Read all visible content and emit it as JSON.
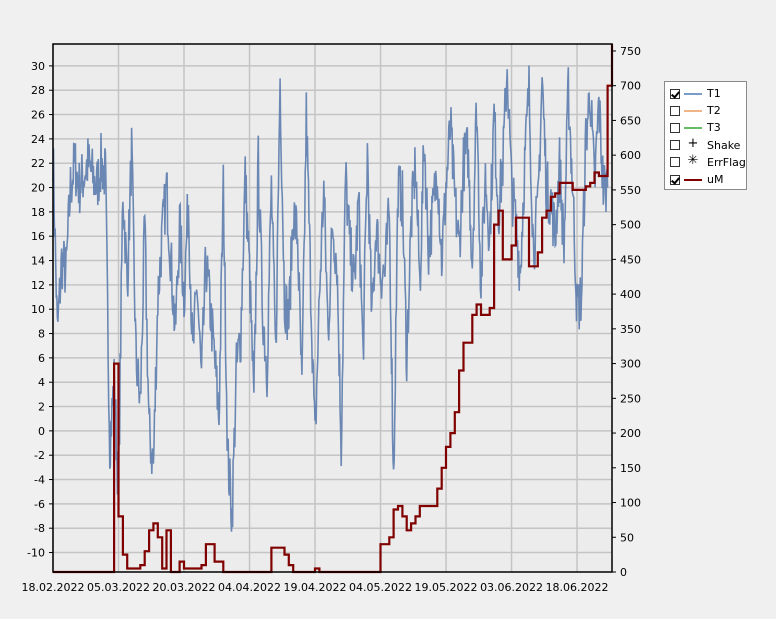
{
  "chart_data": {
    "type": "line",
    "title": "",
    "xlabel": "",
    "ylabel_left": "",
    "ylabel_right": "",
    "grid": true,
    "legend_position": "right",
    "x_ticks": [
      "18.02.2022",
      "05.03.2022",
      "20.03.2022",
      "04.04.2022",
      "19.04.2022",
      "04.05.2022",
      "19.05.2022",
      "03.06.2022",
      "18.06.2022"
    ],
    "x_range": [
      "2022-02-18",
      "2022-06-26"
    ],
    "y_left": {
      "ticks": [
        -10,
        -8,
        -6,
        -4,
        -2,
        0,
        2,
        4,
        6,
        8,
        10,
        12,
        14,
        16,
        18,
        20,
        22,
        24,
        26,
        28,
        30
      ],
      "range": [
        -11.6,
        31.8
      ]
    },
    "y_right": {
      "ticks": [
        0,
        50,
        100,
        150,
        200,
        250,
        300,
        350,
        400,
        450,
        500,
        550,
        600,
        650,
        700,
        750
      ],
      "range": [
        0,
        760
      ]
    },
    "series": [
      {
        "name": "T1",
        "axis": "left",
        "color": "#5577aa",
        "visible": true,
        "x": [
          "2022-02-18",
          "2022-02-19",
          "2022-02-20",
          "2022-02-21",
          "2022-02-22",
          "2022-02-23",
          "2022-02-24",
          "2022-02-25",
          "2022-02-26",
          "2022-02-27",
          "2022-02-28",
          "2022-03-01",
          "2022-03-02",
          "2022-03-03",
          "2022-03-04",
          "2022-03-05",
          "2022-03-06",
          "2022-03-07",
          "2022-03-08",
          "2022-03-09",
          "2022-03-10",
          "2022-03-11",
          "2022-03-12",
          "2022-03-13",
          "2022-03-14",
          "2022-03-15",
          "2022-03-16",
          "2022-03-17",
          "2022-03-18",
          "2022-03-19",
          "2022-03-20",
          "2022-03-21",
          "2022-03-22",
          "2022-03-23",
          "2022-03-24",
          "2022-03-25",
          "2022-03-26",
          "2022-03-27",
          "2022-03-28",
          "2022-03-29",
          "2022-03-30",
          "2022-03-31",
          "2022-04-01",
          "2022-04-02",
          "2022-04-03",
          "2022-04-04",
          "2022-04-05",
          "2022-04-06",
          "2022-04-07",
          "2022-04-08",
          "2022-04-09",
          "2022-04-10",
          "2022-04-11",
          "2022-04-12",
          "2022-04-13",
          "2022-04-14",
          "2022-04-15",
          "2022-04-16",
          "2022-04-17",
          "2022-04-18",
          "2022-04-19",
          "2022-04-20",
          "2022-04-21",
          "2022-04-22",
          "2022-04-23",
          "2022-04-24",
          "2022-04-25",
          "2022-04-26",
          "2022-04-27",
          "2022-04-28",
          "2022-04-29",
          "2022-04-30",
          "2022-05-01",
          "2022-05-02",
          "2022-05-03",
          "2022-05-04",
          "2022-05-05",
          "2022-05-06",
          "2022-05-07",
          "2022-05-08",
          "2022-05-09",
          "2022-05-10",
          "2022-05-11",
          "2022-05-12",
          "2022-05-13",
          "2022-05-14",
          "2022-05-15",
          "2022-05-16",
          "2022-05-17",
          "2022-05-18",
          "2022-05-19",
          "2022-05-20",
          "2022-05-21",
          "2022-05-22",
          "2022-05-23",
          "2022-05-24",
          "2022-05-25",
          "2022-05-26",
          "2022-05-27",
          "2022-05-28",
          "2022-05-29",
          "2022-05-30",
          "2022-05-31",
          "2022-06-01",
          "2022-06-02",
          "2022-06-03",
          "2022-06-04",
          "2022-06-05",
          "2022-06-06",
          "2022-06-07",
          "2022-06-08",
          "2022-06-09",
          "2022-06-10",
          "2022-06-11",
          "2022-06-12",
          "2022-06-13",
          "2022-06-14",
          "2022-06-15",
          "2022-06-16",
          "2022-06-17",
          "2022-06-18",
          "2022-06-19",
          "2022-06-20",
          "2022-06-21",
          "2022-06-22",
          "2022-06-23",
          "2022-06-24",
          "2022-06-25"
        ],
        "values": [
          23,
          8,
          14,
          13,
          20,
          22,
          20,
          21,
          22,
          21,
          20,
          22,
          21,
          -1,
          4,
          -5,
          20,
          12,
          23,
          6,
          2,
          17,
          0,
          -3,
          11,
          16,
          20,
          14,
          8,
          17,
          11,
          19,
          6,
          12,
          4,
          14,
          10,
          6,
          1,
          20,
          -2,
          -7,
          5,
          8,
          21,
          13,
          2,
          22,
          10,
          5,
          20,
          6,
          29,
          11,
          9,
          18,
          16,
          3,
          26,
          12,
          -1,
          11,
          20,
          8,
          17,
          14,
          -1,
          21,
          15,
          12,
          19,
          6,
          23,
          9,
          17,
          13,
          13,
          18,
          -4,
          20,
          19,
          6,
          17,
          22,
          12,
          24,
          15,
          18,
          22,
          14,
          20,
          25,
          19,
          15,
          22,
          23,
          14,
          27,
          12,
          21,
          16,
          26,
          18,
          22,
          30,
          20,
          17,
          13,
          22,
          28,
          15,
          18,
          29,
          20,
          19,
          16,
          22,
          15,
          28,
          20,
          10,
          11,
          24,
          28,
          20,
          27,
          20,
          20
        ]
      },
      {
        "name": "T2",
        "axis": "left",
        "color": "#e8a070",
        "visible": false,
        "values": []
      },
      {
        "name": "T3",
        "axis": "left",
        "color": "#55aa55",
        "visible": false,
        "values": []
      },
      {
        "name": "Shake",
        "axis": "left",
        "color": "#000000",
        "visible": false,
        "values": []
      },
      {
        "name": "ErrFlag",
        "axis": "left",
        "color": "#000000",
        "visible": false,
        "values": []
      },
      {
        "name": "uM",
        "axis": "right",
        "color": "#800000",
        "visible": true,
        "x": [
          "2022-02-18",
          "2022-03-03",
          "2022-03-04",
          "2022-03-05",
          "2022-03-06",
          "2022-03-07",
          "2022-03-08",
          "2022-03-09",
          "2022-03-10",
          "2022-03-11",
          "2022-03-12",
          "2022-03-13",
          "2022-03-14",
          "2022-03-15",
          "2022-03-16",
          "2022-03-17",
          "2022-03-18",
          "2022-03-19",
          "2022-03-20",
          "2022-03-21",
          "2022-03-22",
          "2022-03-23",
          "2022-03-24",
          "2022-03-25",
          "2022-03-26",
          "2022-03-27",
          "2022-03-28",
          "2022-03-29",
          "2022-03-30",
          "2022-03-31",
          "2022-04-01",
          "2022-04-02",
          "2022-04-03",
          "2022-04-04",
          "2022-04-05",
          "2022-04-06",
          "2022-04-07",
          "2022-04-08",
          "2022-04-09",
          "2022-04-10",
          "2022-04-11",
          "2022-04-12",
          "2022-04-13",
          "2022-04-14",
          "2022-04-15",
          "2022-04-16",
          "2022-04-17",
          "2022-04-18",
          "2022-04-19",
          "2022-04-20",
          "2022-04-22",
          "2022-04-25",
          "2022-04-28",
          "2022-05-01",
          "2022-05-03",
          "2022-05-04",
          "2022-05-05",
          "2022-05-06",
          "2022-05-07",
          "2022-05-08",
          "2022-05-09",
          "2022-05-10",
          "2022-05-11",
          "2022-05-12",
          "2022-05-13",
          "2022-05-14",
          "2022-05-15",
          "2022-05-16",
          "2022-05-17",
          "2022-05-18",
          "2022-05-19",
          "2022-05-20",
          "2022-05-21",
          "2022-05-22",
          "2022-05-23",
          "2022-05-24",
          "2022-05-25",
          "2022-05-26",
          "2022-05-27",
          "2022-05-28",
          "2022-05-29",
          "2022-05-30",
          "2022-05-31",
          "2022-06-01",
          "2022-06-02",
          "2022-06-03",
          "2022-06-04",
          "2022-06-05",
          "2022-06-06",
          "2022-06-07",
          "2022-06-08",
          "2022-06-09",
          "2022-06-10",
          "2022-06-11",
          "2022-06-12",
          "2022-06-13",
          "2022-06-14",
          "2022-06-15",
          "2022-06-16",
          "2022-06-17",
          "2022-06-18",
          "2022-06-19",
          "2022-06-20",
          "2022-06-21",
          "2022-06-22",
          "2022-06-23",
          "2022-06-24",
          "2022-06-25",
          "2022-06-26"
        ],
        "values": [
          0,
          0,
          300,
          80,
          25,
          5,
          5,
          5,
          10,
          30,
          60,
          70,
          50,
          5,
          60,
          0,
          0,
          15,
          5,
          5,
          5,
          5,
          10,
          40,
          40,
          15,
          15,
          0,
          0,
          0,
          0,
          0,
          0,
          0,
          0,
          0,
          0,
          0,
          35,
          35,
          35,
          25,
          10,
          0,
          0,
          0,
          0,
          0,
          5,
          0,
          0,
          0,
          0,
          0,
          0,
          40,
          40,
          50,
          90,
          95,
          80,
          60,
          70,
          80,
          95,
          95,
          95,
          95,
          120,
          150,
          180,
          200,
          230,
          290,
          330,
          330,
          370,
          385,
          370,
          370,
          380,
          500,
          520,
          450,
          450,
          470,
          510,
          510,
          510,
          440,
          440,
          460,
          510,
          520,
          540,
          545,
          560,
          560,
          560,
          550,
          550,
          550,
          555,
          560,
          575,
          570,
          570,
          700,
          760
        ]
      }
    ]
  },
  "legend": {
    "items": [
      {
        "label": "T1",
        "checked": true,
        "swatch": "line",
        "color": "#7a9cc8"
      },
      {
        "label": "T2",
        "checked": false,
        "swatch": "line",
        "color": "#f0b488"
      },
      {
        "label": "T3",
        "checked": false,
        "swatch": "line",
        "color": "#66bb66"
      },
      {
        "label": "Shake",
        "checked": false,
        "swatch": "symbol",
        "symbol": "+"
      },
      {
        "label": "ErrFlag",
        "checked": false,
        "swatch": "symbol",
        "symbol": "✳"
      },
      {
        "label": "uM",
        "checked": true,
        "swatch": "line",
        "color": "#800000"
      }
    ]
  }
}
